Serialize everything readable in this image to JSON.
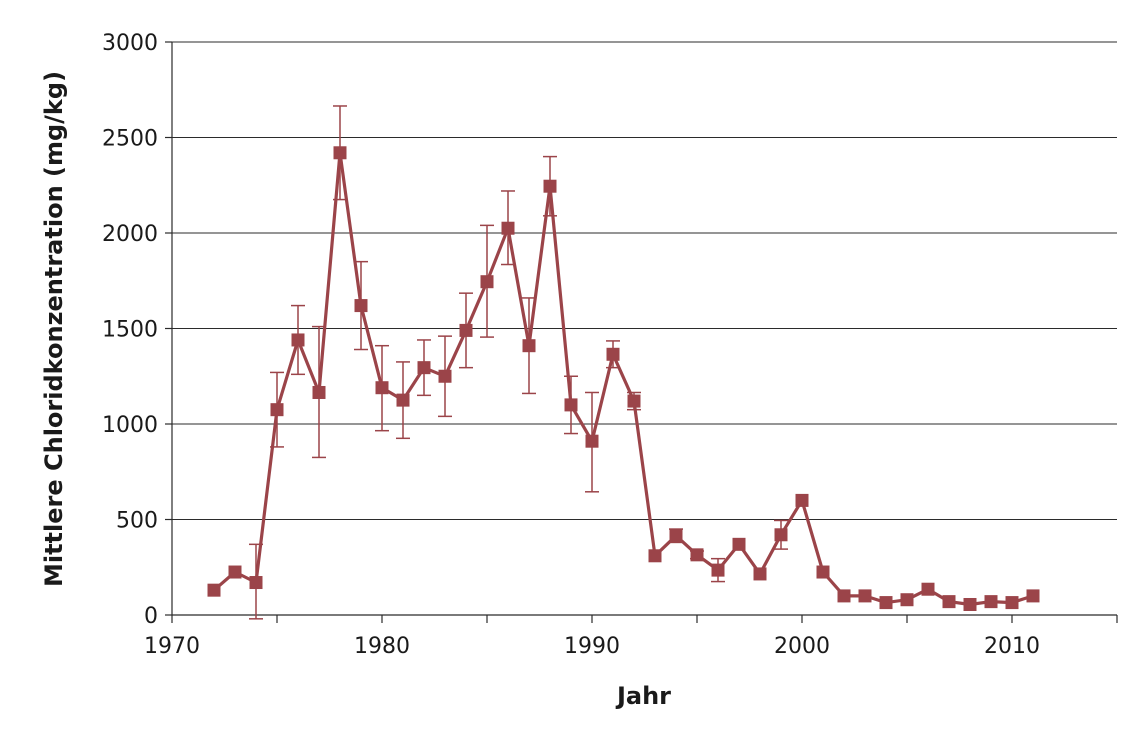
{
  "chart_data": {
    "type": "line",
    "title": "",
    "xlabel": "Jahr",
    "ylabel": "Mittlere Chloridkonzentration (mg/kg)",
    "xlim": [
      1970,
      2015
    ],
    "ylim": [
      0,
      3000
    ],
    "x_ticks": [
      1970,
      1980,
      1990,
      2000,
      2010
    ],
    "y_ticks": [
      0,
      500,
      1000,
      1500,
      2000,
      2500,
      3000
    ],
    "grid": "horizontal",
    "legend": "none",
    "series_color": "#9b4449",
    "series": [
      {
        "x": [
          1972,
          1973,
          1974,
          1975,
          1976,
          1977,
          1978,
          1979,
          1980,
          1981,
          1982,
          1983,
          1984,
          1985,
          1986,
          1987,
          1988,
          1989,
          1990,
          1991,
          1992,
          1993,
          1994,
          1995,
          1996,
          1997,
          1998,
          1999,
          2000,
          2001,
          2002,
          2003,
          2004,
          2005,
          2006,
          2007,
          2008,
          2009,
          2010,
          2011
        ],
        "values": [
          130,
          225,
          170,
          1075,
          1440,
          1165,
          2420,
          1620,
          1190,
          1125,
          1295,
          1250,
          1490,
          1745,
          2025,
          1410,
          2245,
          1100,
          910,
          1365,
          1120,
          310,
          415,
          315,
          235,
          370,
          215,
          420,
          600,
          225,
          100,
          100,
          65,
          80,
          135,
          70,
          55,
          70,
          65,
          100
        ],
        "error_low": [
          null,
          null,
          -20,
          880,
          1260,
          825,
          2175,
          1390,
          965,
          925,
          1150,
          1040,
          1295,
          1455,
          1835,
          1160,
          2090,
          950,
          645,
          1295,
          1075,
          null,
          380,
          295,
          175,
          null,
          null,
          345,
          null,
          null,
          null,
          null,
          null,
          null,
          null,
          null,
          null,
          null,
          null,
          null
        ],
        "error_high": [
          null,
          null,
          370,
          1270,
          1620,
          1510,
          2665,
          1850,
          1410,
          1325,
          1440,
          1460,
          1685,
          2040,
          2220,
          1660,
          2400,
          1250,
          1165,
          1435,
          1165,
          null,
          450,
          335,
          295,
          null,
          null,
          495,
          null,
          null,
          null,
          null,
          null,
          null,
          null,
          null,
          null,
          null,
          null,
          null
        ]
      }
    ]
  }
}
